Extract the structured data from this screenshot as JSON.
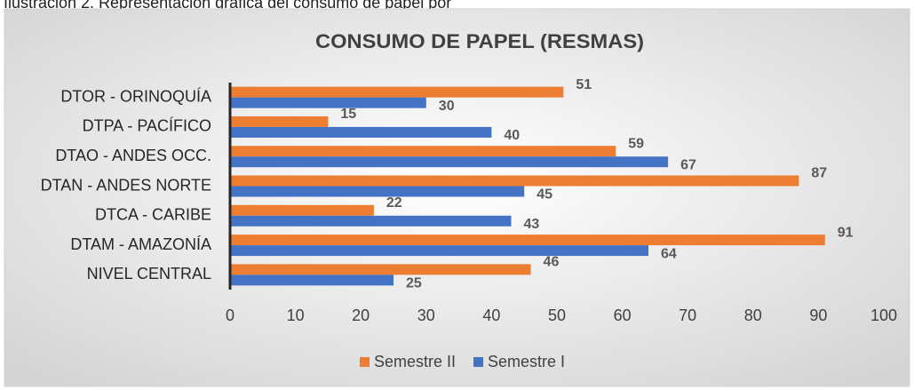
{
  "caption": "Ilustración 2. Representación gráfica del consumo de papel por",
  "chart_data": {
    "type": "hbar",
    "title": "CONSUMO DE PAPEL (RESMAS)",
    "categories": [
      "DTOR - ORINOQUÍA",
      "DTPA - PACÍFICO",
      "DTAO - ANDES OCC.",
      "DTAN - ANDES NORTE",
      "DTCA - CARIBE",
      "DTAM - AMAZONÍA",
      "NIVEL CENTRAL"
    ],
    "series": [
      {
        "name": "Semestre II",
        "color": "#ed7d31",
        "values": [
          51,
          15,
          59,
          87,
          22,
          91,
          46
        ]
      },
      {
        "name": "Semestre I",
        "color": "#4472c4",
        "values": [
          30,
          40,
          67,
          45,
          43,
          64,
          25
        ]
      }
    ],
    "xlim": [
      0,
      100
    ],
    "xticks": [
      0,
      10,
      20,
      30,
      40,
      50,
      60,
      70,
      80,
      90,
      100
    ],
    "legend": "bottom"
  }
}
